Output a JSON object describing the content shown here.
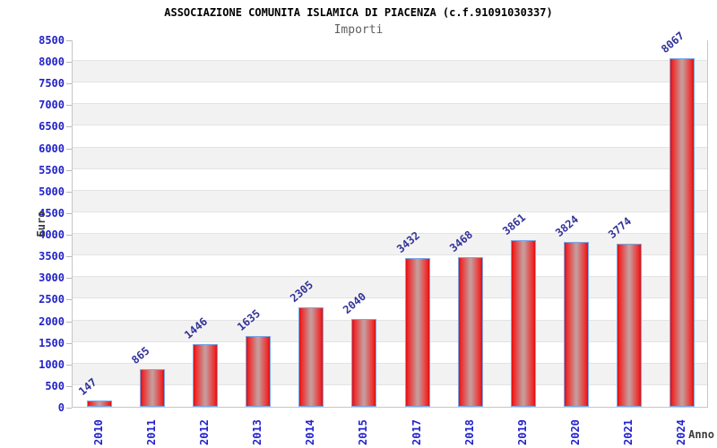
{
  "chart_data": {
    "type": "bar",
    "title": "ASSOCIAZIONE COMUNITA ISLAMICA DI PIACENZA (c.f.91091030337)",
    "subtitle": "Importi",
    "xlabel": "Anno",
    "ylabel": "Euro",
    "categories": [
      "2010",
      "2011",
      "2012",
      "2013",
      "2014",
      "2015",
      "2017",
      "2018",
      "2019",
      "2020",
      "2021",
      "2024"
    ],
    "values": [
      147,
      865,
      1446,
      1635,
      2305,
      2040,
      3432,
      3468,
      3861,
      3824,
      3774,
      8067
    ],
    "ylim": [
      0,
      8500
    ],
    "ytick_step": 500,
    "ytick_labels": [
      "0",
      "500",
      "1000",
      "1500",
      "2000",
      "2500",
      "3000",
      "3500",
      "4000",
      "4500",
      "5000",
      "5500",
      "6000",
      "6500",
      "7000",
      "7500",
      "8000",
      "8500"
    ],
    "grid": true,
    "legend": null,
    "background_bands": "alternating white / light gray every 500",
    "colors": {
      "bar_fill_edge": "#dd0f0f",
      "bar_fill_center": "#c79a9a",
      "bar_border": "#7aa6e8",
      "axis_tick_label": "#2222cc",
      "value_label": "#333399",
      "band_gray": "#f2f2f2",
      "grid_line": "#e3e3e3",
      "plot_border": "#c6c6c6",
      "title_color": "#000000",
      "subtitle_color": "#5f5f5f",
      "axis_title_color": "#3d3d3d"
    }
  }
}
